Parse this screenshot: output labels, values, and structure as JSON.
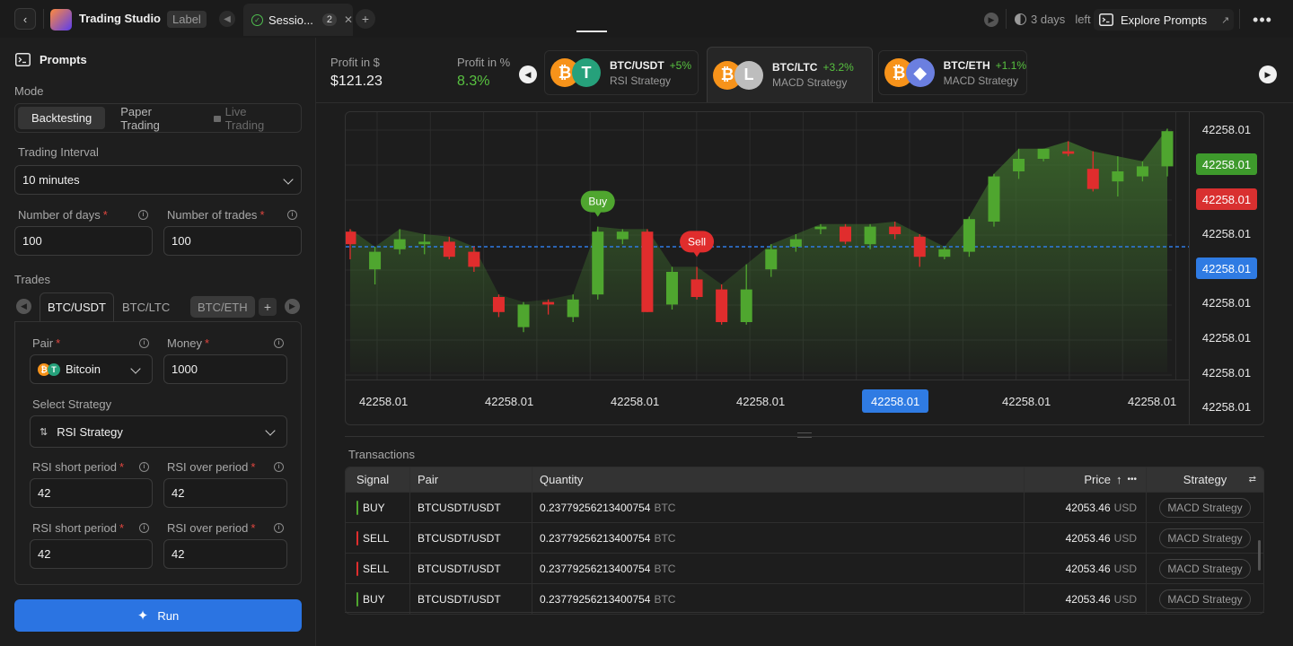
{
  "header": {
    "app_title": "Trading Studio",
    "label_badge": "Label",
    "session_tab": "Sessio...",
    "session_count": "2",
    "days_left": "3 days",
    "days_left_suffix": "left",
    "explore_label": "Explore Prompts"
  },
  "left": {
    "title": "Prompts",
    "mode_label": "Mode",
    "modes": [
      "Backtesting",
      "Paper Trading",
      "Live Trading"
    ],
    "interval_label": "Trading Interval",
    "interval_value": "10 minutes",
    "days_label": "Number of days",
    "days_value": "100",
    "trades_label": "Number of trades",
    "trades_value": "100",
    "trades_section": "Trades",
    "trade_tabs": [
      "BTC/USDT",
      "BTC/LTC",
      "BTC/ETH"
    ],
    "pair_label": "Pair",
    "pair_value": "Bitcoin",
    "money_label": "Money",
    "money_value": "1000",
    "strategy_label": "Select Strategy",
    "strategy_value": "RSI Strategy",
    "rsi_short_label": "RSI short period",
    "rsi_over_label": "RSI over period",
    "rsi_short_1": "42",
    "rsi_over_1": "42",
    "rsi_short_2": "42",
    "rsi_over_2": "42",
    "run_label": "Run"
  },
  "summary": {
    "profit_usd_label": "Profit in $",
    "profit_usd": "$121.23",
    "profit_pct_label": "Profit in %",
    "profit_pct": "8.3%"
  },
  "pairs": [
    {
      "name": "BTC/USDT",
      "pct": "+5%",
      "strategy": "RSI Strategy"
    },
    {
      "name": "BTC/LTC",
      "pct": "+3.2%",
      "strategy": "MACD Strategy"
    },
    {
      "name": "BTC/ETH",
      "pct": "+1.1%",
      "strategy": "MACD Strategy"
    }
  ],
  "chart_data": {
    "type": "candlestick",
    "y_tick_labels": [
      "42258.01",
      "42258.01",
      "42258.01",
      "42258.01",
      "42258.01",
      "42258.01",
      "42258.01",
      "42258.01",
      "42258.01"
    ],
    "y_highlight": {
      "green": "42258.01",
      "red": "42258.01",
      "blue": "42258.01"
    },
    "x_tick_labels": [
      "42258.01",
      "42258.01",
      "42258.01",
      "42258.01",
      "42258.01",
      "42258.01",
      "42258.01"
    ],
    "annotations": [
      {
        "label": "Buy",
        "candle": 10
      },
      {
        "label": "Sell",
        "candle": 14
      }
    ],
    "candles": [
      {
        "o": 0.56,
        "c": 0.51,
        "h": 0.57,
        "l": 0.45,
        "dir": "down"
      },
      {
        "o": 0.41,
        "c": 0.48,
        "h": 0.5,
        "l": 0.35,
        "dir": "up"
      },
      {
        "o": 0.49,
        "c": 0.53,
        "h": 0.57,
        "l": 0.47,
        "dir": "up"
      },
      {
        "o": 0.51,
        "c": 0.52,
        "h": 0.55,
        "l": 0.47,
        "dir": "up"
      },
      {
        "o": 0.52,
        "c": 0.46,
        "h": 0.54,
        "l": 0.45,
        "dir": "down"
      },
      {
        "o": 0.48,
        "c": 0.42,
        "h": 0.5,
        "l": 0.4,
        "dir": "down"
      },
      {
        "o": 0.3,
        "c": 0.24,
        "h": 0.31,
        "l": 0.22,
        "dir": "down"
      },
      {
        "o": 0.18,
        "c": 0.27,
        "h": 0.28,
        "l": 0.16,
        "dir": "up"
      },
      {
        "o": 0.28,
        "c": 0.27,
        "h": 0.29,
        "l": 0.23,
        "dir": "down"
      },
      {
        "o": 0.22,
        "c": 0.29,
        "h": 0.31,
        "l": 0.2,
        "dir": "up"
      },
      {
        "o": 0.31,
        "c": 0.56,
        "h": 0.58,
        "l": 0.29,
        "dir": "up"
      },
      {
        "o": 0.53,
        "c": 0.56,
        "h": 0.57,
        "l": 0.51,
        "dir": "up"
      },
      {
        "o": 0.56,
        "c": 0.24,
        "h": 0.57,
        "l": 0.24,
        "dir": "down"
      },
      {
        "o": 0.27,
        "c": 0.4,
        "h": 0.42,
        "l": 0.25,
        "dir": "up"
      },
      {
        "o": 0.37,
        "c": 0.3,
        "h": 0.42,
        "l": 0.29,
        "dir": "down"
      },
      {
        "o": 0.33,
        "c": 0.2,
        "h": 0.35,
        "l": 0.19,
        "dir": "down"
      },
      {
        "o": 0.2,
        "c": 0.33,
        "h": 0.43,
        "l": 0.19,
        "dir": "up"
      },
      {
        "o": 0.41,
        "c": 0.49,
        "h": 0.51,
        "l": 0.38,
        "dir": "up"
      },
      {
        "o": 0.5,
        "c": 0.53,
        "h": 0.55,
        "l": 0.48,
        "dir": "up"
      },
      {
        "o": 0.57,
        "c": 0.58,
        "h": 0.59,
        "l": 0.55,
        "dir": "up"
      },
      {
        "o": 0.58,
        "c": 0.52,
        "h": 0.59,
        "l": 0.51,
        "dir": "down"
      },
      {
        "o": 0.51,
        "c": 0.58,
        "h": 0.59,
        "l": 0.49,
        "dir": "up"
      },
      {
        "o": 0.58,
        "c": 0.55,
        "h": 0.6,
        "l": 0.53,
        "dir": "down"
      },
      {
        "o": 0.54,
        "c": 0.46,
        "h": 0.55,
        "l": 0.42,
        "dir": "down"
      },
      {
        "o": 0.46,
        "c": 0.49,
        "h": 0.5,
        "l": 0.45,
        "dir": "up"
      },
      {
        "o": 0.48,
        "c": 0.61,
        "h": 0.62,
        "l": 0.46,
        "dir": "up"
      },
      {
        "o": 0.6,
        "c": 0.78,
        "h": 0.79,
        "l": 0.58,
        "dir": "up"
      },
      {
        "o": 0.8,
        "c": 0.85,
        "h": 0.89,
        "l": 0.77,
        "dir": "up"
      },
      {
        "o": 0.85,
        "c": 0.89,
        "h": 0.89,
        "l": 0.84,
        "dir": "up"
      },
      {
        "o": 0.88,
        "c": 0.87,
        "h": 0.92,
        "l": 0.86,
        "dir": "down"
      },
      {
        "o": 0.81,
        "c": 0.73,
        "h": 0.88,
        "l": 0.72,
        "dir": "down"
      },
      {
        "o": 0.76,
        "c": 0.8,
        "h": 0.86,
        "l": 0.7,
        "dir": "up"
      },
      {
        "o": 0.78,
        "c": 0.82,
        "h": 0.84,
        "l": 0.76,
        "dir": "up"
      },
      {
        "o": 0.82,
        "c": 0.96,
        "h": 0.97,
        "l": 0.78,
        "dir": "up"
      }
    ],
    "dashed_level": 0.5,
    "colors": {
      "up": "#4fa62f",
      "down": "#e02d2d",
      "dashed": "#2f7be3",
      "area": "#3e6f2d"
    }
  },
  "transactions": {
    "title": "Transactions",
    "headers": {
      "signal": "Signal",
      "pair": "Pair",
      "quantity": "Quantity",
      "price": "Price",
      "strategy": "Strategy"
    },
    "rows": [
      {
        "signal": "BUY",
        "pair": "BTCUSDT/USDT",
        "qty": "0.23779256213400754",
        "qty_unit": "BTC",
        "price": "42053.46",
        "price_unit": "USD",
        "strategy": "MACD Strategy"
      },
      {
        "signal": "SELL",
        "pair": "BTCUSDT/USDT",
        "qty": "0.23779256213400754",
        "qty_unit": "BTC",
        "price": "42053.46",
        "price_unit": "USD",
        "strategy": "MACD Strategy"
      },
      {
        "signal": "SELL",
        "pair": "BTCUSDT/USDT",
        "qty": "0.23779256213400754",
        "qty_unit": "BTC",
        "price": "42053.46",
        "price_unit": "USD",
        "strategy": "MACD Strategy"
      },
      {
        "signal": "BUY",
        "pair": "BTCUSDT/USDT",
        "qty": "0.23779256213400754",
        "qty_unit": "BTC",
        "price": "42053.46",
        "price_unit": "USD",
        "strategy": "MACD Strategy"
      }
    ]
  }
}
